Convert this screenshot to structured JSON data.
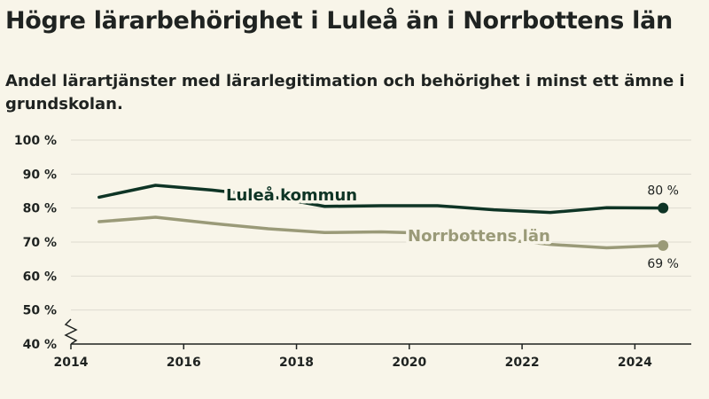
{
  "title": "Högre lärarbehörighet i Luleå än i Norrbottens län",
  "subtitle": "Andel lärartjänster med lärarlegitimation och behörighet i minst ett ämne i grundskolan.",
  "chart_data": {
    "type": "line",
    "title": "Högre lärarbehörighet i Luleå än i Norrbottens län",
    "subtitle": "Andel lärartjänster med lärarlegitimation och behörighet i minst ett ämne i grundskolan.",
    "x": [
      2014.5,
      2015.5,
      2016.5,
      2017.5,
      2018.5,
      2019.5,
      2020.5,
      2021.5,
      2022.5,
      2023.5,
      2024.5
    ],
    "series": [
      {
        "name": "Luleå kommun",
        "color": "#0e3425",
        "values": [
          83.2,
          86.7,
          85.3,
          83.5,
          80.5,
          80.7,
          80.7,
          79.5,
          78.7,
          80.1,
          80.0
        ],
        "end_label": "80 %"
      },
      {
        "name": "Norrbottens län",
        "color": "#9a9a78",
        "values": [
          76.0,
          77.3,
          75.5,
          73.9,
          72.8,
          73.0,
          72.5,
          71.0,
          69.3,
          68.3,
          69.0
        ],
        "end_label": "69 %"
      }
    ],
    "xticks": [
      2014,
      2016,
      2018,
      2020,
      2022,
      2024
    ],
    "yticks": [
      40,
      50,
      60,
      70,
      80,
      90,
      100
    ],
    "ytick_labels": [
      "40 %",
      "50 %",
      "60 %",
      "70 %",
      "80 %",
      "90 %",
      "100 %"
    ],
    "xlim": [
      2014,
      2025
    ],
    "ylim": [
      40,
      100
    ],
    "grid": true,
    "axis_break": true
  }
}
